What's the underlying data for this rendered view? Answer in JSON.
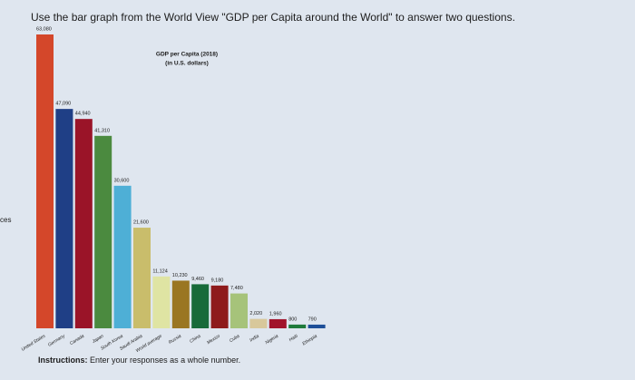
{
  "question": "Use the bar graph from the World View \"GDP per Capita around the World\" to answer two questions.",
  "side_text": "ces",
  "instructions_label": "Instructions:",
  "instructions_text": "Enter your responses as a whole number.",
  "chart_data": {
    "type": "bar",
    "title": "GDP per Capita (2018)",
    "subtitle": "(in U.S. dollars)",
    "categories": [
      "United States",
      "Germany",
      "Canada",
      "Japan",
      "South Korea",
      "Saudi Arabia",
      "World average",
      "Russia",
      "China",
      "Mexico",
      "Cuba",
      "India",
      "Nigeria",
      "Haiti",
      "Ethiopia"
    ],
    "values": [
      63080,
      47090,
      44940,
      41310,
      30600,
      21600,
      11124,
      10230,
      9460,
      9180,
      7480,
      2020,
      1960,
      800,
      790
    ],
    "value_labels": [
      "63,080",
      "47,090",
      "44,940",
      "41,310",
      "30,600",
      "21,600",
      "11,124",
      "10,230",
      "9,460",
      "9,180",
      "7,480",
      "2,020",
      "1,960",
      "800",
      "790"
    ],
    "colors": [
      "#d4472a",
      "#1f3f86",
      "#9a1428",
      "#4b8a3f",
      "#4eafd6",
      "#c9bd6b",
      "#dfe4a3",
      "#9a7622",
      "#176b3a",
      "#8e1a1c",
      "#a6c37a",
      "#d8c89b",
      "#a1132b",
      "#1e7a3b",
      "#1e4f98"
    ]
  }
}
